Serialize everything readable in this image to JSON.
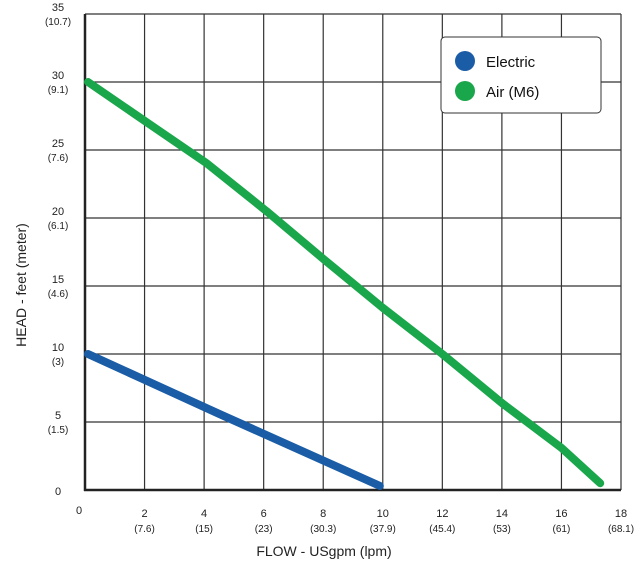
{
  "chart_data": {
    "type": "line",
    "xlabel": "FLOW - USgpm (lpm)",
    "ylabel": "HEAD - feet (meter)",
    "xlim": [
      0,
      18
    ],
    "ylim": [
      0,
      35
    ],
    "grid": true,
    "legend_position": "top-right",
    "x_ticks": [
      {
        "value": 0,
        "label": "0",
        "sub": ""
      },
      {
        "value": 2,
        "label": "2",
        "sub": "(7.6)"
      },
      {
        "value": 4,
        "label": "4",
        "sub": "(15)"
      },
      {
        "value": 6,
        "label": "6",
        "sub": "(23)"
      },
      {
        "value": 8,
        "label": "8",
        "sub": "(30.3)"
      },
      {
        "value": 10,
        "label": "10",
        "sub": "(37.9)"
      },
      {
        "value": 12,
        "label": "12",
        "sub": "(45.4)"
      },
      {
        "value": 14,
        "label": "14",
        "sub": "(53)"
      },
      {
        "value": 16,
        "label": "16",
        "sub": "(61)"
      },
      {
        "value": 18,
        "label": "18",
        "sub": "(68.1)"
      }
    ],
    "y_ticks": [
      {
        "value": 0,
        "label": "0",
        "sub": ""
      },
      {
        "value": 5,
        "label": "5",
        "sub": "(1.5)"
      },
      {
        "value": 10,
        "label": "10",
        "sub": "(3)"
      },
      {
        "value": 15,
        "label": "15",
        "sub": "(4.6)"
      },
      {
        "value": 20,
        "label": "20",
        "sub": "(6.1)"
      },
      {
        "value": 25,
        "label": "25",
        "sub": "(7.6)"
      },
      {
        "value": 30,
        "label": "30",
        "sub": "(9.1)"
      },
      {
        "value": 35,
        "label": "35",
        "sub": "(10.7)"
      }
    ],
    "series": [
      {
        "name": "Electric",
        "color": "#1a5da6",
        "points": [
          [
            0.1,
            10
          ],
          [
            4.5,
            5.6
          ],
          [
            9.9,
            0.3
          ]
        ]
      },
      {
        "name": "Air (M6)",
        "color": "#1aa64a",
        "points": [
          [
            0.1,
            30
          ],
          [
            2.1,
            27
          ],
          [
            4.1,
            24
          ],
          [
            6.1,
            20.5
          ],
          [
            8.0,
            17
          ],
          [
            10.0,
            13.4
          ],
          [
            12.0,
            10
          ],
          [
            14.0,
            6.4
          ],
          [
            16.0,
            3.1
          ],
          [
            17.3,
            0.5
          ]
        ]
      }
    ]
  }
}
